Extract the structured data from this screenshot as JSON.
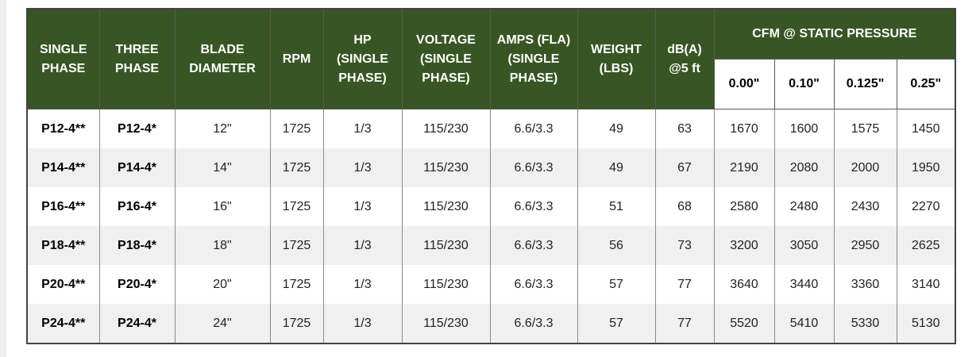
{
  "table": {
    "headers": {
      "single_phase": "SINGLE PHASE",
      "three_phase": "THREE PHASE",
      "blade_diameter": "BLADE DIAMETER",
      "rpm": "RPM",
      "hp": "HP (SINGLE PHASE)",
      "voltage": "VOLTAGE (SINGLE PHASE)",
      "amps": "AMPS (FLA) (SINGLE PHASE)",
      "weight": "WEIGHT (LBS)",
      "dba": "dB(A) @5 ft",
      "cfm_group": "CFM @ STATIC PRESSURE",
      "cfm_sub": [
        "0.00\"",
        "0.10\"",
        "0.125\"",
        "0.25\""
      ]
    },
    "rows": [
      {
        "single": "P12-4**",
        "three": "P12-4*",
        "blade": "12\"",
        "rpm": "1725",
        "hp": "1/3",
        "voltage": "115/230",
        "amps": "6.6/3.3",
        "weight": "49",
        "dba": "63",
        "cfm": [
          "1670",
          "1600",
          "1575",
          "1450"
        ]
      },
      {
        "single": "P14-4**",
        "three": "P14-4*",
        "blade": "14\"",
        "rpm": "1725",
        "hp": "1/3",
        "voltage": "115/230",
        "amps": "6.6/3.3",
        "weight": "49",
        "dba": "67",
        "cfm": [
          "2190",
          "2080",
          "2000",
          "1950"
        ]
      },
      {
        "single": "P16-4**",
        "three": "P16-4*",
        "blade": "16\"",
        "rpm": "1725",
        "hp": "1/3",
        "voltage": "115/230",
        "amps": "6.6/3.3",
        "weight": "51",
        "dba": "68",
        "cfm": [
          "2580",
          "2480",
          "2430",
          "2270"
        ]
      },
      {
        "single": "P18-4**",
        "three": "P18-4*",
        "blade": "18\"",
        "rpm": "1725",
        "hp": "1/3",
        "voltage": "115/230",
        "amps": "6.6/3.3",
        "weight": "56",
        "dba": "73",
        "cfm": [
          "3200",
          "3050",
          "2950",
          "2625"
        ]
      },
      {
        "single": "P20-4**",
        "three": "P20-4*",
        "blade": "20\"",
        "rpm": "1725",
        "hp": "1/3",
        "voltage": "115/230",
        "amps": "6.6/3.3",
        "weight": "57",
        "dba": "77",
        "cfm": [
          "3640",
          "3440",
          "3360",
          "3140"
        ]
      },
      {
        "single": "P24-4**",
        "three": "P24-4*",
        "blade": "24\"",
        "rpm": "1725",
        "hp": "1/3",
        "voltage": "115/230",
        "amps": "6.6/3.3",
        "weight": "57",
        "dba": "77",
        "cfm": [
          "5520",
          "5410",
          "5330",
          "5130"
        ]
      }
    ]
  },
  "colors": {
    "header_bg": "#375623",
    "header_text": "#ffffff",
    "row_alt_bg": "#f0f0f0"
  }
}
